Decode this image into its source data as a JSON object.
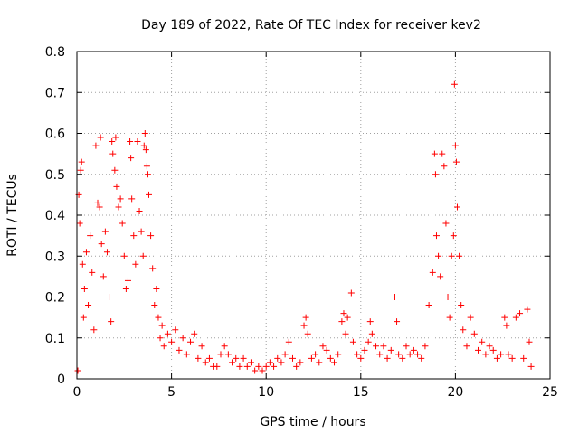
{
  "chart_data": {
    "type": "scatter",
    "title": "Day 189 of 2022, Rate Of TEC Index for receiver kev2",
    "xlabel": "GPS time / hours",
    "ylabel": "ROTI / TECUs",
    "xlim": [
      0,
      25
    ],
    "ylim": [
      0,
      0.8
    ],
    "x_ticks": [
      "0",
      "5",
      "10",
      "15",
      "20",
      "25"
    ],
    "y_ticks": [
      "0",
      "0.1",
      "0.2",
      "0.3",
      "0.4",
      "0.5",
      "0.6",
      "0.7",
      "0.8"
    ],
    "grid": true,
    "marker": "+",
    "color": "#ff0000",
    "series": [
      {
        "points": [
          [
            0.05,
            0.02
          ],
          [
            0.1,
            0.45
          ],
          [
            0.15,
            0.38
          ],
          [
            0.2,
            0.51
          ],
          [
            0.25,
            0.53
          ],
          [
            0.3,
            0.28
          ],
          [
            0.35,
            0.15
          ],
          [
            0.4,
            0.22
          ],
          [
            0.5,
            0.31
          ],
          [
            0.6,
            0.18
          ],
          [
            0.7,
            0.35
          ],
          [
            0.8,
            0.26
          ],
          [
            0.9,
            0.12
          ],
          [
            1.0,
            0.57
          ],
          [
            1.1,
            0.43
          ],
          [
            1.2,
            0.42
          ],
          [
            1.25,
            0.59
          ],
          [
            1.3,
            0.33
          ],
          [
            1.4,
            0.25
          ],
          [
            1.5,
            0.36
          ],
          [
            1.6,
            0.31
          ],
          [
            1.7,
            0.2
          ],
          [
            1.8,
            0.14
          ],
          [
            1.85,
            0.58
          ],
          [
            1.9,
            0.55
          ],
          [
            2.0,
            0.51
          ],
          [
            2.05,
            0.59
          ],
          [
            2.1,
            0.47
          ],
          [
            2.2,
            0.42
          ],
          [
            2.3,
            0.44
          ],
          [
            2.4,
            0.38
          ],
          [
            2.5,
            0.3
          ],
          [
            2.6,
            0.22
          ],
          [
            2.7,
            0.24
          ],
          [
            2.8,
            0.58
          ],
          [
            2.85,
            0.54
          ],
          [
            2.9,
            0.44
          ],
          [
            3.0,
            0.35
          ],
          [
            3.1,
            0.28
          ],
          [
            3.2,
            0.58
          ],
          [
            3.3,
            0.41
          ],
          [
            3.4,
            0.36
          ],
          [
            3.5,
            0.3
          ],
          [
            3.55,
            0.57
          ],
          [
            3.6,
            0.6
          ],
          [
            3.65,
            0.56
          ],
          [
            3.7,
            0.52
          ],
          [
            3.75,
            0.5
          ],
          [
            3.8,
            0.45
          ],
          [
            3.9,
            0.35
          ],
          [
            4.0,
            0.27
          ],
          [
            4.1,
            0.18
          ],
          [
            4.2,
            0.22
          ],
          [
            4.3,
            0.15
          ],
          [
            4.4,
            0.1
          ],
          [
            4.5,
            0.13
          ],
          [
            4.6,
            0.08
          ],
          [
            4.8,
            0.11
          ],
          [
            5.0,
            0.09
          ],
          [
            5.2,
            0.12
          ],
          [
            5.4,
            0.07
          ],
          [
            5.6,
            0.1
          ],
          [
            5.8,
            0.06
          ],
          [
            6.0,
            0.09
          ],
          [
            6.2,
            0.11
          ],
          [
            6.4,
            0.05
          ],
          [
            6.6,
            0.08
          ],
          [
            6.8,
            0.04
          ],
          [
            7.0,
            0.05
          ],
          [
            7.2,
            0.03
          ],
          [
            7.4,
            0.03
          ],
          [
            7.6,
            0.06
          ],
          [
            7.8,
            0.08
          ],
          [
            8.0,
            0.06
          ],
          [
            8.2,
            0.04
          ],
          [
            8.4,
            0.05
          ],
          [
            8.6,
            0.03
          ],
          [
            8.8,
            0.05
          ],
          [
            9.0,
            0.03
          ],
          [
            9.2,
            0.04
          ],
          [
            9.4,
            0.02
          ],
          [
            9.6,
            0.03
          ],
          [
            9.8,
            0.02
          ],
          [
            10.0,
            0.03
          ],
          [
            10.2,
            0.04
          ],
          [
            10.4,
            0.03
          ],
          [
            10.6,
            0.05
          ],
          [
            10.8,
            0.04
          ],
          [
            11.0,
            0.06
          ],
          [
            11.2,
            0.09
          ],
          [
            11.4,
            0.05
          ],
          [
            11.6,
            0.03
          ],
          [
            11.8,
            0.04
          ],
          [
            12.0,
            0.13
          ],
          [
            12.1,
            0.15
          ],
          [
            12.2,
            0.11
          ],
          [
            12.4,
            0.05
          ],
          [
            12.6,
            0.06
          ],
          [
            12.8,
            0.04
          ],
          [
            13.0,
            0.08
          ],
          [
            13.2,
            0.07
          ],
          [
            13.4,
            0.05
          ],
          [
            13.6,
            0.04
          ],
          [
            13.8,
            0.06
          ],
          [
            14.0,
            0.14
          ],
          [
            14.1,
            0.16
          ],
          [
            14.2,
            0.11
          ],
          [
            14.3,
            0.15
          ],
          [
            14.5,
            0.21
          ],
          [
            14.6,
            0.09
          ],
          [
            14.8,
            0.06
          ],
          [
            15.0,
            0.05
          ],
          [
            15.2,
            0.07
          ],
          [
            15.4,
            0.09
          ],
          [
            15.5,
            0.14
          ],
          [
            15.6,
            0.11
          ],
          [
            15.8,
            0.08
          ],
          [
            16.0,
            0.06
          ],
          [
            16.2,
            0.08
          ],
          [
            16.4,
            0.05
          ],
          [
            16.6,
            0.07
          ],
          [
            16.8,
            0.2
          ],
          [
            16.9,
            0.14
          ],
          [
            17.0,
            0.06
          ],
          [
            17.2,
            0.05
          ],
          [
            17.4,
            0.08
          ],
          [
            17.6,
            0.06
          ],
          [
            17.8,
            0.07
          ],
          [
            18.0,
            0.06
          ],
          [
            18.2,
            0.05
          ],
          [
            18.4,
            0.08
          ],
          [
            18.6,
            0.18
          ],
          [
            18.8,
            0.26
          ],
          [
            18.9,
            0.55
          ],
          [
            18.95,
            0.5
          ],
          [
            19.0,
            0.35
          ],
          [
            19.1,
            0.3
          ],
          [
            19.2,
            0.25
          ],
          [
            19.3,
            0.55
          ],
          [
            19.4,
            0.52
          ],
          [
            19.5,
            0.38
          ],
          [
            19.6,
            0.2
          ],
          [
            19.7,
            0.15
          ],
          [
            19.8,
            0.3
          ],
          [
            19.9,
            0.35
          ],
          [
            19.95,
            0.72
          ],
          [
            20.0,
            0.57
          ],
          [
            20.05,
            0.53
          ],
          [
            20.1,
            0.42
          ],
          [
            20.2,
            0.3
          ],
          [
            20.3,
            0.18
          ],
          [
            20.4,
            0.12
          ],
          [
            20.6,
            0.08
          ],
          [
            20.8,
            0.15
          ],
          [
            21.0,
            0.11
          ],
          [
            21.2,
            0.07
          ],
          [
            21.4,
            0.09
          ],
          [
            21.6,
            0.06
          ],
          [
            21.8,
            0.08
          ],
          [
            22.0,
            0.07
          ],
          [
            22.2,
            0.05
          ],
          [
            22.4,
            0.06
          ],
          [
            22.6,
            0.15
          ],
          [
            22.7,
            0.13
          ],
          [
            22.8,
            0.06
          ],
          [
            23.0,
            0.05
          ],
          [
            23.2,
            0.15
          ],
          [
            23.4,
            0.16
          ],
          [
            23.6,
            0.05
          ],
          [
            23.8,
            0.17
          ],
          [
            23.9,
            0.09
          ],
          [
            24.0,
            0.03
          ]
        ]
      }
    ]
  }
}
